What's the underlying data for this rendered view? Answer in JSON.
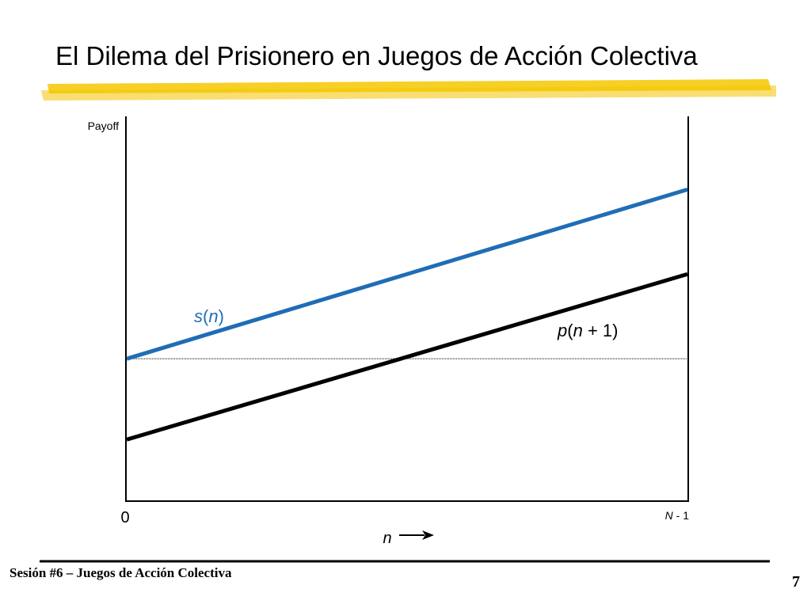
{
  "slide": {
    "title": "El Dilema del Prisionero en Juegos de Acción Colectiva",
    "footer": "Sesión #6 – Juegos de Acción Colectiva",
    "page_number": "7"
  },
  "colors": {
    "title_highlight": "#F2C200",
    "series_s": "#1F6DB5",
    "series_p": "#000000",
    "axis": "#000000"
  },
  "chart_data": {
    "type": "line",
    "title": "",
    "ylabel": "Payoff",
    "xlabel": "n",
    "x_tick_labels": {
      "start": "0",
      "end_var": "N",
      "end_rest": " - 1"
    },
    "xlim": [
      0,
      1
    ],
    "ylim": [
      0,
      1
    ],
    "grid": false,
    "reference_line": {
      "y": 0.37,
      "style": "dotted"
    },
    "series": [
      {
        "name_func": "s",
        "name_arg": "n",
        "name_suffix": "",
        "color": "#1F6DB5",
        "points": [
          [
            0,
            0.37
          ],
          [
            1,
            0.81
          ]
        ]
      },
      {
        "name_func": "p",
        "name_arg": "n",
        "name_suffix": " + 1",
        "color": "#000000",
        "points": [
          [
            0,
            0.16
          ],
          [
            1,
            0.59
          ]
        ]
      }
    ]
  }
}
